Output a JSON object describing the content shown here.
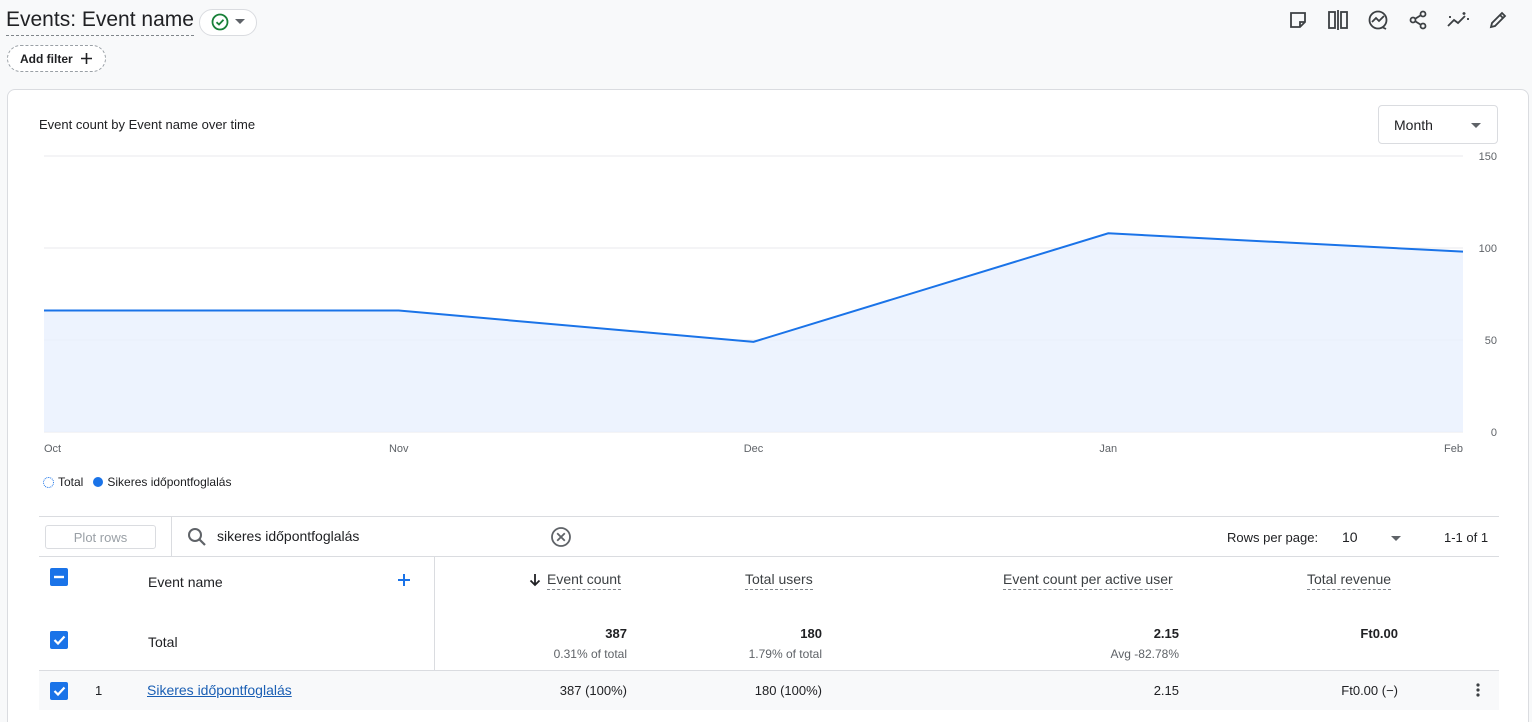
{
  "header": {
    "title": "Events: Event name",
    "add_filter_label": "Add filter",
    "toolbar_icons": [
      "note-icon",
      "compare-icon",
      "insights-icon",
      "share-icon",
      "anomaly-icon",
      "edit-icon"
    ]
  },
  "chart_card": {
    "title": "Event count by Event name over time",
    "period_select": "Month"
  },
  "chart_data": {
    "type": "area",
    "title": "Event count by Event name over time",
    "categories": [
      "Oct",
      "Nov",
      "Dec",
      "Jan",
      "Feb"
    ],
    "series": [
      {
        "name": "Sikeres időpontfoglalás",
        "values": [
          66,
          66,
          49,
          108,
          98
        ]
      }
    ],
    "yticks": [
      "150",
      "100",
      "50",
      "0"
    ],
    "ylim": [
      0,
      150
    ],
    "grid": true,
    "legend": [
      "Total",
      "Sikeres időpontfoglalás"
    ],
    "legend_placement": "bottom-left",
    "colors": {
      "line": "#1a73e8",
      "fill": "#e8f0fe"
    }
  },
  "table": {
    "plot_rows_label": "Plot rows",
    "search_value": "sikeres időpontfoglalás",
    "rows_per_page_label": "Rows per page:",
    "rows_per_page_value": "10",
    "pager_text": "1-1 of 1",
    "columns": {
      "dimension": "Event name",
      "event_count": "Event count",
      "total_users": "Total users",
      "per_user": "Event count per active user",
      "revenue": "Total revenue"
    },
    "totals": {
      "label": "Total",
      "event_count": "387",
      "event_count_sub": "0.31% of total",
      "total_users": "180",
      "total_users_sub": "1.79% of total",
      "per_user": "2.15",
      "per_user_sub": "Avg -82.78%",
      "revenue": "Ft0.00"
    },
    "rows": [
      {
        "index": "1",
        "name": "Sikeres időpontfoglalás",
        "event_count": "387 (100%)",
        "total_users": "180 (100%)",
        "per_user": "2.15",
        "revenue": "Ft0.00 (−)"
      }
    ]
  }
}
